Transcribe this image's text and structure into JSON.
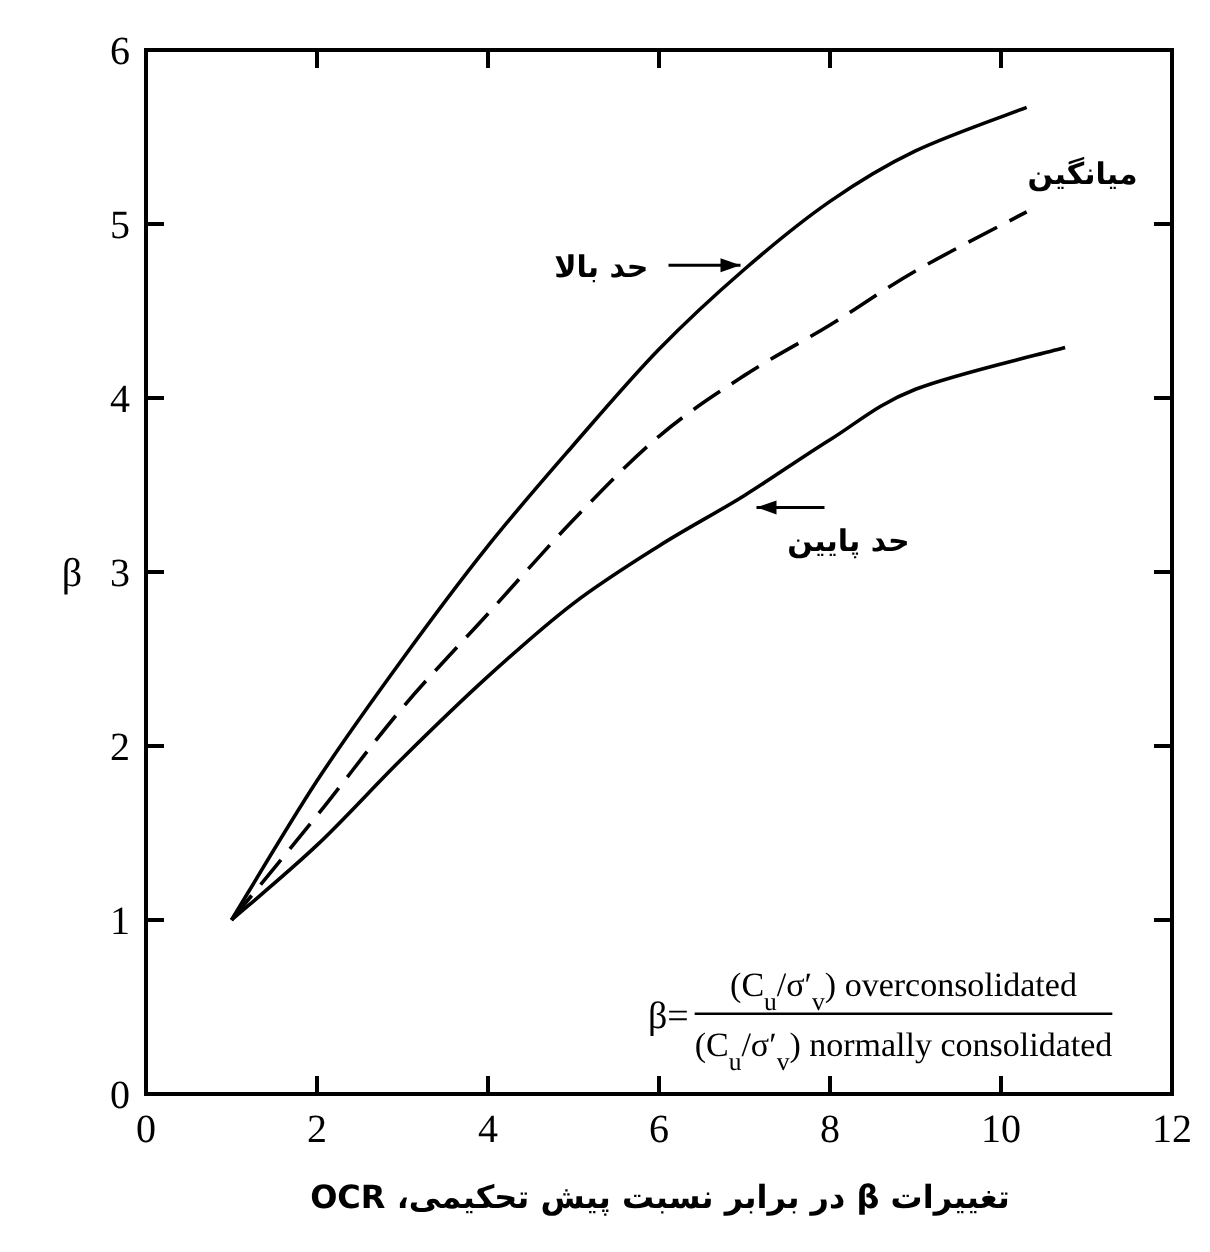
{
  "chart_data": {
    "type": "line",
    "title": "تغییرات β در برابر نسبت پیش تحکیمی، OCR",
    "ylabel": "β",
    "xlim": [
      0,
      12
    ],
    "ylim": [
      0,
      6
    ],
    "xticks": [
      0,
      2,
      4,
      6,
      8,
      10,
      12
    ],
    "yticks": [
      0,
      1,
      2,
      3,
      4,
      5,
      6
    ],
    "x": [
      1,
      2,
      3,
      4,
      5,
      6,
      7,
      8,
      9,
      10.3
    ],
    "series": [
      {
        "name": "حد بالا",
        "color": "#000000",
        "line_style": "solid",
        "values": [
          1,
          1.8,
          2.5,
          3.15,
          3.73,
          4.28,
          4.74,
          5.13,
          5.42,
          5.67
        ]
      },
      {
        "name": "میانگین",
        "color": "#000000",
        "line_style": "dashed",
        "values": [
          1,
          1.6,
          2.22,
          2.76,
          3.3,
          3.78,
          4.13,
          4.42,
          4.73,
          5.07
        ]
      },
      {
        "name": "حد پایین",
        "color": "#000000",
        "line_style": "solid",
        "x": [
          1,
          2,
          3,
          4,
          5,
          6,
          7,
          8,
          9,
          10.75
        ],
        "values": [
          1,
          1.43,
          1.93,
          2.4,
          2.82,
          3.15,
          3.44,
          3.76,
          4.05,
          4.29
        ]
      }
    ],
    "annotations": [
      "β=",
      "(C$_{u}$/σ′$_{v}$) overconsolidated",
      "(C$_{u}$/σ′$_{v}$) normally consolidated"
    ]
  }
}
